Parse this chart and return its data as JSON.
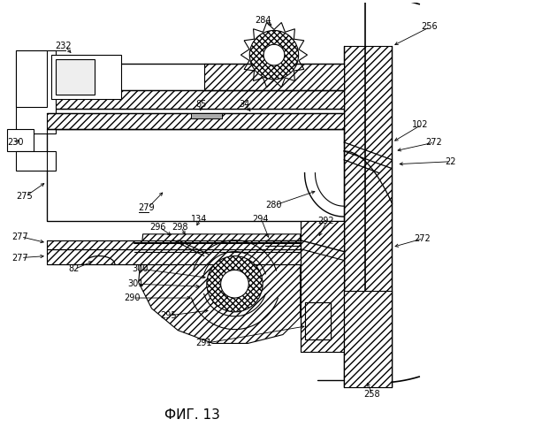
{
  "title": "ФИГ. 13",
  "bg_color": "#ffffff",
  "line_color": "#000000"
}
